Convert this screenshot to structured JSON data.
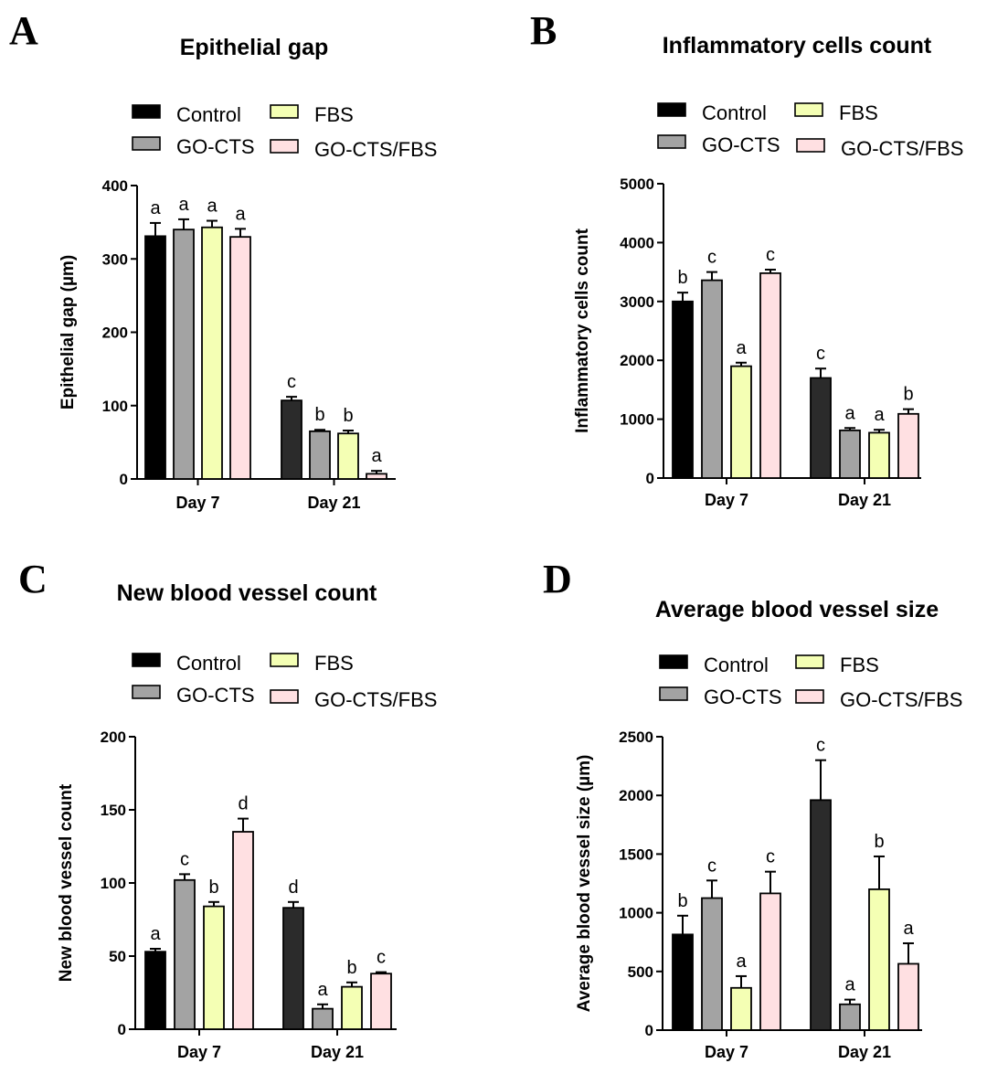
{
  "colors": {
    "Control": [
      "#000000",
      "#2b2b2b"
    ],
    "GO-CTS": "#a3a3a3",
    "FBS": "#f4ffb4",
    "GO-CTS/FBS": "#ffe0e2"
  },
  "chart_data": [
    {
      "type": "bar",
      "panel": "A",
      "title": "Epithelial gap",
      "xlabel": "",
      "ylabel": "Epithelial gap (µm)",
      "ylim": [
        0,
        400
      ],
      "yticks": [
        0,
        100,
        200,
        300,
        400
      ],
      "categories": [
        "Day 7",
        "Day 21"
      ],
      "legend": [
        "Control",
        "FBS",
        "GO-CTS",
        "GO-CTS/FBS"
      ],
      "series": [
        {
          "name": "Control",
          "values": [
            331,
            107
          ],
          "errors": [
            18,
            5
          ],
          "labels": [
            "a",
            "c"
          ]
        },
        {
          "name": "GO-CTS",
          "values": [
            340,
            65
          ],
          "errors": [
            14,
            2
          ],
          "labels": [
            "a",
            "b"
          ]
        },
        {
          "name": "FBS",
          "values": [
            343,
            62
          ],
          "errors": [
            9,
            4
          ],
          "labels": [
            "a",
            "b"
          ]
        },
        {
          "name": "GO-CTS/FBS",
          "values": [
            330,
            7
          ],
          "errors": [
            11,
            4
          ],
          "labels": [
            "a",
            "a"
          ]
        }
      ]
    },
    {
      "type": "bar",
      "panel": "B",
      "title": "Inflammatory cells count",
      "xlabel": "",
      "ylabel": "Inflammatory cells count",
      "ylim": [
        0,
        5000
      ],
      "yticks": [
        0,
        1000,
        2000,
        3000,
        4000,
        5000
      ],
      "categories": [
        "Day 7",
        "Day 21"
      ],
      "legend": [
        "Control",
        "FBS",
        "GO-CTS",
        "GO-CTS/FBS"
      ],
      "series": [
        {
          "name": "Control",
          "values": [
            3000,
            1700
          ],
          "errors": [
            150,
            160
          ],
          "labels": [
            "b",
            "c"
          ]
        },
        {
          "name": "GO-CTS",
          "values": [
            3360,
            810
          ],
          "errors": [
            140,
            40
          ],
          "labels": [
            "c",
            "a"
          ]
        },
        {
          "name": "FBS",
          "values": [
            1900,
            770
          ],
          "errors": [
            60,
            50
          ],
          "labels": [
            "a",
            "a"
          ]
        },
        {
          "name": "GO-CTS/FBS",
          "values": [
            3480,
            1090
          ],
          "errors": [
            60,
            80
          ],
          "labels": [
            "c",
            "b"
          ]
        }
      ]
    },
    {
      "type": "bar",
      "panel": "C",
      "title": "New blood vessel count",
      "xlabel": "",
      "ylabel": "New blood vessel count",
      "ylim": [
        0,
        200
      ],
      "yticks": [
        0,
        50,
        100,
        150,
        200
      ],
      "categories": [
        "Day 7",
        "Day 21"
      ],
      "legend": [
        "Control",
        "FBS",
        "GO-CTS",
        "GO-CTS/FBS"
      ],
      "series": [
        {
          "name": "Control",
          "values": [
            53,
            83
          ],
          "errors": [
            2,
            4
          ],
          "labels": [
            "a",
            "d"
          ]
        },
        {
          "name": "GO-CTS",
          "values": [
            102,
            14
          ],
          "errors": [
            4,
            3
          ],
          "labels": [
            "c",
            "a"
          ]
        },
        {
          "name": "FBS",
          "values": [
            84,
            29
          ],
          "errors": [
            3,
            3
          ],
          "labels": [
            "b",
            "b"
          ]
        },
        {
          "name": "GO-CTS/FBS",
          "values": [
            135,
            38
          ],
          "errors": [
            9,
            1
          ],
          "labels": [
            "d",
            "c"
          ]
        }
      ]
    },
    {
      "type": "bar",
      "panel": "D",
      "title": "Average blood vessel size",
      "xlabel": "",
      "ylabel": "Average blood vessel size (µm)",
      "ylim": [
        0,
        2500
      ],
      "yticks": [
        0,
        500,
        1000,
        1500,
        2000,
        2500
      ],
      "categories": [
        "Day 7",
        "Day 21"
      ],
      "legend": [
        "Control",
        "FBS",
        "GO-CTS",
        "GO-CTS/FBS"
      ],
      "series": [
        {
          "name": "Control",
          "values": [
            815,
            1960
          ],
          "errors": [
            160,
            340
          ],
          "labels": [
            "b",
            "c"
          ]
        },
        {
          "name": "GO-CTS",
          "values": [
            1125,
            220
          ],
          "errors": [
            150,
            40
          ],
          "labels": [
            "c",
            "a"
          ]
        },
        {
          "name": "FBS",
          "values": [
            360,
            1200
          ],
          "errors": [
            100,
            280
          ],
          "labels": [
            "a",
            "b"
          ]
        },
        {
          "name": "GO-CTS/FBS",
          "values": [
            1165,
            565
          ],
          "errors": [
            185,
            175
          ],
          "labels": [
            "c",
            "a"
          ]
        }
      ]
    }
  ]
}
